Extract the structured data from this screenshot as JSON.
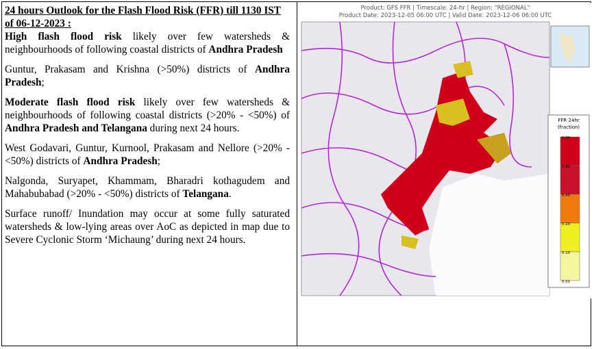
{
  "document": {
    "left": {
      "title": "24 hours Outlook for the Flash Flood Risk (FFR) till 1130 IST of 06-12-2023 :",
      "paragraphs": [
        [
          {
            "text": "High flash flood risk",
            "bold": true
          },
          {
            "text": " likely over few watersheds & neighbourhoods of following coastal districts of ",
            "bold": false
          },
          {
            "text": "Andhra Pradesh",
            "bold": true
          }
        ],
        [
          {
            "text": "Guntur, Prakasam and Krishna (>50%) districts of ",
            "bold": false
          },
          {
            "text": "Andhra Pradesh",
            "bold": true
          },
          {
            "text": ";",
            "bold": false
          }
        ],
        [
          {
            "text": "Moderate flash flood risk",
            "bold": true
          },
          {
            "text": " likely over few watersheds & neighbourhoods of following coastal districts (>20% - <50%) of ",
            "bold": false
          },
          {
            "text": "Andhra Pradesh and Telangana",
            "bold": true
          },
          {
            "text": " during next 24 hours.",
            "bold": false
          }
        ],
        [
          {
            "text": "West Godavari, Guntur, Kurnool, Prakasam and Nellore (>20% - <50%) districts of ",
            "bold": false
          },
          {
            "text": "Andhra Pradesh",
            "bold": true
          },
          {
            "text": ";",
            "bold": false
          }
        ],
        [
          {
            "text": "Nalgonda, Suryapet, Khammam, Bharadri kothagudem and Mahabubabad (>20% - <50%) districts of ",
            "bold": false
          },
          {
            "text": "Telangana",
            "bold": true
          },
          {
            "text": ".",
            "bold": false
          }
        ],
        [
          {
            "text": "Surface runoff/ Inundation may occur at some fully saturated watersheds & low-lying areas over AoC as depicted in map due to Severe Cyclonic Storm ‘Michaung’ during next 24 hours.",
            "bold": false
          }
        ]
      ]
    },
    "map": {
      "header_line1": "Product: GFS FFR | Timescale: 24-hr | Region: \"REGIONAL\"",
      "header_line2": "Product Date: 2023-12-05 06:00 UTC | Valid Date: 2023-12-06 06:00 UTC",
      "legend": {
        "title_line1": "FFR 24hr",
        "title_line2": "(fraction)",
        "ticks": [
          "1.00",
          "0.80",
          "0.40",
          "0.20",
          "0.10",
          "0.01"
        ],
        "colors": [
          "#d0001a",
          "#c8102a",
          "#ee7a10",
          "#eef020",
          "#f6f6a0"
        ]
      }
    }
  }
}
